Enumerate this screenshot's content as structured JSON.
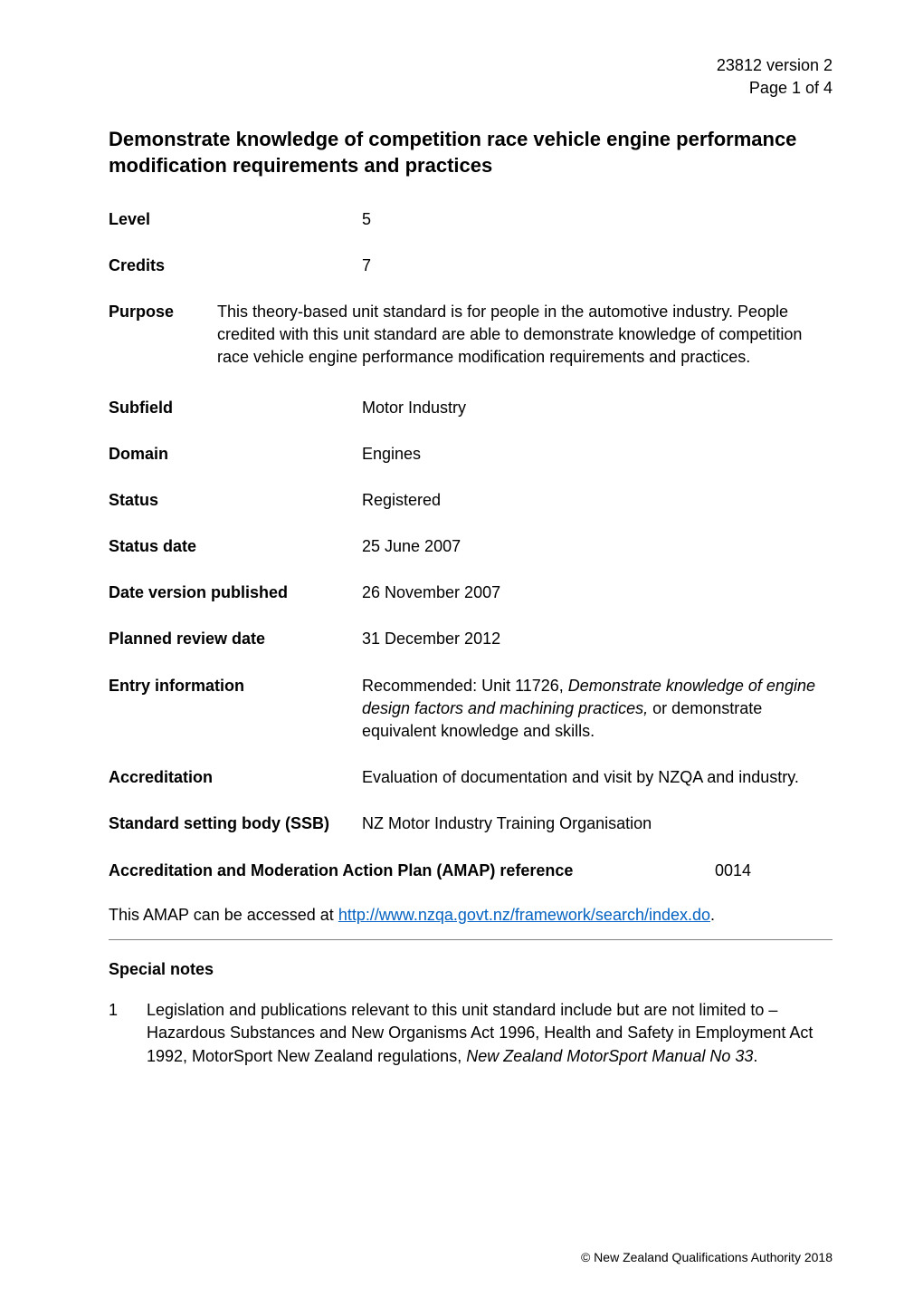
{
  "header": {
    "doc_id": "23812 version 2",
    "page_info": "Page 1 of 4"
  },
  "title": "Demonstrate knowledge of competition race vehicle engine performance modification requirements and practices",
  "fields": {
    "level": {
      "label": "Level",
      "value": "5"
    },
    "credits": {
      "label": "Credits",
      "value": "7"
    },
    "purpose": {
      "label": "Purpose",
      "value": "This theory-based unit standard is for people in the automotive industry. People credited with this unit standard are able to demonstrate knowledge of competition race vehicle engine performance modification requirements and practices."
    },
    "subfield": {
      "label": "Subfield",
      "value": "Motor Industry"
    },
    "domain": {
      "label": "Domain",
      "value": "Engines"
    },
    "status": {
      "label": "Status",
      "value": "Registered"
    },
    "status_date": {
      "label": "Status date",
      "value": "25 June 2007"
    },
    "date_published": {
      "label": "Date version published",
      "value": "26 November 2007"
    },
    "planned_review": {
      "label": "Planned review date",
      "value": "31 December 2012"
    },
    "entry_info": {
      "label": "Entry information",
      "prefix": "Recommended: Unit 11726, ",
      "italic": "Demonstrate knowledge of engine design factors and machining practices,",
      "suffix": " or demonstrate equivalent knowledge and skills."
    },
    "accreditation": {
      "label": "Accreditation",
      "value": "Evaluation of documentation and visit by NZQA and industry."
    },
    "ssb": {
      "label": "Standard setting body (SSB)",
      "value": "NZ Motor Industry Training Organisation"
    },
    "amap_ref": {
      "label": "Accreditation and Moderation Action Plan (AMAP) reference",
      "value": "0014"
    },
    "amap_text_prefix": "This AMAP can be accessed at ",
    "amap_link": "http://www.nzqa.govt.nz/framework/search/index.do",
    "amap_text_suffix": "."
  },
  "special_notes": {
    "heading": "Special notes",
    "items": [
      {
        "num": "1",
        "text_prefix": "Legislation and publications relevant to this unit standard include but are not limited to – Hazardous Substances and New Organisms Act 1996, Health and Safety in Employment Act 1992, MotorSport New Zealand regulations, ",
        "italic": "New Zealand MotorSport Manual No 33",
        "text_suffix": "."
      }
    ]
  },
  "footer": {
    "copyright": "©  New Zealand Qualifications Authority 2018"
  },
  "colors": {
    "text": "#000000",
    "link": "#0563c1",
    "hr": "#808080",
    "background": "#ffffff"
  },
  "typography": {
    "body_fontsize": 18,
    "title_fontsize": 22,
    "footer_fontsize": 14,
    "font_family": "Arial"
  }
}
